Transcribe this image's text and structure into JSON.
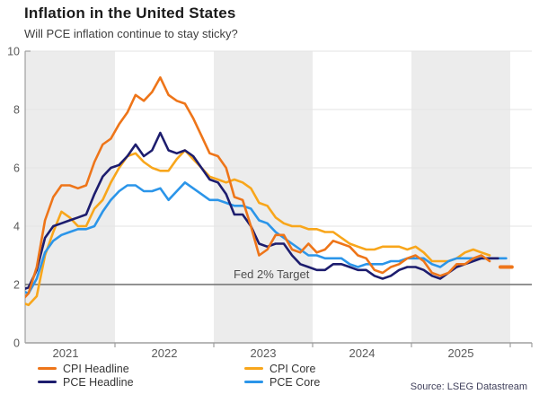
{
  "header": {
    "title": "Inflation in the United States",
    "subtitle": "Will PCE inflation continue to stay sticky?"
  },
  "source": "Source: LSEG Datastream",
  "colors": {
    "cpi_headline": "#ee7519",
    "cpi_core": "#f8a61b",
    "pce_headline": "#1d1d6e",
    "pce_core": "#2b95e9",
    "band": "#ececec",
    "grid": "#e3e3e3",
    "axis": "#9f9f9f",
    "fed_line": "#6f6f6f",
    "tick_text": "#595959",
    "annotation_text": "#4d4d4d"
  },
  "legend": {
    "items": [
      {
        "label": "CPI Headline",
        "color": "#ee7519"
      },
      {
        "label": "PCE Headline",
        "color": "#1d1d6e"
      },
      {
        "label": "CPI Core",
        "color": "#f8a61b"
      },
      {
        "label": "PCE Core",
        "color": "#2b95e9"
      }
    ]
  },
  "chart_data": {
    "type": "line",
    "title": "Inflation in the United States",
    "subtitle": "Will PCE inflation continue to stay sticky?",
    "x_start": "2021-01",
    "x_interval": "monthly",
    "x_tick_labels": [
      "2021",
      "2022",
      "2023",
      "2024",
      "2025"
    ],
    "ylim": [
      0,
      10
    ],
    "yticks": [
      0,
      2,
      4,
      6,
      8,
      10
    ],
    "grid": "horizontal-faint",
    "background_bands": "alternating-year-gray",
    "legend_position": "bottom",
    "annotation": {
      "label": "Fed 2% Target",
      "value": 2
    },
    "series": [
      {
        "name": "CPI Core",
        "color": "#f8a61b",
        "values": [
          1.4,
          1.3,
          1.6,
          3.0,
          3.8,
          4.5,
          4.3,
          4.0,
          4.0,
          4.6,
          4.9,
          5.5,
          6.0,
          6.4,
          6.5,
          6.2,
          6.0,
          5.9,
          5.9,
          6.3,
          6.6,
          6.3,
          6.0,
          5.7,
          5.6,
          5.5,
          5.6,
          5.5,
          5.3,
          4.8,
          4.7,
          4.3,
          4.1,
          4.0,
          4.0,
          3.9,
          3.9,
          3.8,
          3.8,
          3.6,
          3.4,
          3.3,
          3.2,
          3.2,
          3.3,
          3.3,
          3.3,
          3.2,
          3.3,
          3.1,
          2.8,
          2.8,
          2.8,
          2.9,
          3.1,
          3.2,
          3.1,
          3.0
        ]
      },
      {
        "name": "PCE Core",
        "color": "#2b95e9",
        "values": [
          1.8,
          1.7,
          2.2,
          3.1,
          3.5,
          3.7,
          3.8,
          3.9,
          3.9,
          4.0,
          4.5,
          4.9,
          5.2,
          5.4,
          5.4,
          5.2,
          5.2,
          5.3,
          4.9,
          5.2,
          5.5,
          5.3,
          5.1,
          4.9,
          4.9,
          4.8,
          4.7,
          4.7,
          4.6,
          4.2,
          4.1,
          3.8,
          3.6,
          3.4,
          3.2,
          3.0,
          3.0,
          2.9,
          2.9,
          2.9,
          2.7,
          2.6,
          2.7,
          2.7,
          2.7,
          2.8,
          2.8,
          2.9,
          2.9,
          2.9,
          2.7,
          2.6,
          2.8,
          2.9,
          2.9,
          2.9,
          2.9,
          2.9,
          2.9,
          2.9
        ]
      },
      {
        "name": "PCE Headline",
        "color": "#1d1d6e",
        "values": [
          1.8,
          1.9,
          2.5,
          3.6,
          4.0,
          4.1,
          4.2,
          4.3,
          4.4,
          5.1,
          5.7,
          6.0,
          6.1,
          6.4,
          6.8,
          6.4,
          6.6,
          7.2,
          6.6,
          6.5,
          6.6,
          6.4,
          6.0,
          5.6,
          5.5,
          5.1,
          4.4,
          4.4,
          4.0,
          3.4,
          3.3,
          3.4,
          3.4,
          3.0,
          2.7,
          2.6,
          2.5,
          2.5,
          2.7,
          2.7,
          2.6,
          2.5,
          2.5,
          2.3,
          2.2,
          2.3,
          2.5,
          2.6,
          2.6,
          2.5,
          2.3,
          2.2,
          2.4,
          2.6,
          2.7,
          2.8,
          2.9,
          2.9,
          2.9
        ]
      },
      {
        "name": "CPI Headline",
        "color": "#ee7519",
        "values": [
          1.4,
          1.7,
          2.6,
          4.2,
          5.0,
          5.4,
          5.4,
          5.3,
          5.4,
          6.2,
          6.8,
          7.0,
          7.5,
          7.9,
          8.5,
          8.3,
          8.6,
          9.1,
          8.5,
          8.3,
          8.2,
          7.7,
          7.1,
          6.5,
          6.4,
          6.0,
          5.0,
          4.9,
          4.0,
          3.0,
          3.2,
          3.7,
          3.7,
          3.2,
          3.1,
          3.4,
          3.1,
          3.2,
          3.5,
          3.4,
          3.3,
          3.0,
          2.9,
          2.5,
          2.4,
          2.6,
          2.7,
          2.9,
          3.0,
          2.8,
          2.4,
          2.3,
          2.4,
          2.7,
          2.7,
          2.9,
          3.0,
          2.8
        ]
      }
    ],
    "end_marker": {
      "series": "CPI Headline",
      "value": 2.6,
      "start_index": 58.3,
      "end_index": 59.7
    }
  }
}
